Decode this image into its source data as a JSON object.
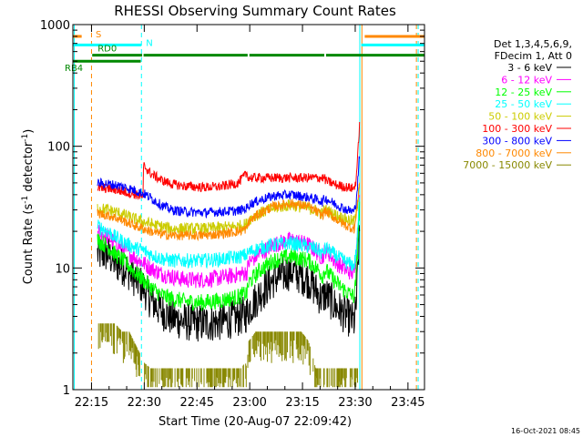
{
  "chart_data": {
    "type": "line",
    "title": "RHESSI Observing Summary Count Rates",
    "xlabel": "Start Time (20-Aug-07 22:09:42)",
    "ylabel": "Count Rate (s",
    "ylabel_sup1": "-1",
    "ylabel_mid": " detector",
    "ylabel_sup2": "-1",
    "ylabel_end": ")",
    "yscale": "log",
    "xlim": [
      0,
      100
    ],
    "ylim": [
      1,
      1000
    ],
    "x_units": "minutes after 22:09:42",
    "xticks": [
      {
        "x": 5.3,
        "label": "22:15"
      },
      {
        "x": 20.3,
        "label": "22:30"
      },
      {
        "x": 35.3,
        "label": "22:45"
      },
      {
        "x": 50.3,
        "label": "23:00"
      },
      {
        "x": 65.3,
        "label": "23:15"
      },
      {
        "x": 80.3,
        "label": "23:30"
      },
      {
        "x": 95.3,
        "label": "23:45"
      }
    ],
    "yticks": [
      {
        "y": 1,
        "label": "1"
      },
      {
        "y": 10,
        "label": "10"
      },
      {
        "y": 100,
        "label": "100"
      },
      {
        "y": 1000,
        "label": "1000"
      }
    ],
    "legend": {
      "placement": "right",
      "header": [
        "Det 1,3,4,5,6,9,",
        "FDecim 1, Att 0"
      ],
      "entries": [
        {
          "label": "3 - 6 keV",
          "color": "#000000"
        },
        {
          "label": "6 - 12 keV",
          "color": "#ff00ff"
        },
        {
          "label": "12 - 25 keV",
          "color": "#00ff00"
        },
        {
          "label": "25 - 50 keV",
          "color": "#00ffff"
        },
        {
          "label": "50 - 100 keV",
          "color": "#cccc00"
        },
        {
          "label": "100 - 300 keV",
          "color": "#ff0000"
        },
        {
          "label": "300 - 800 keV",
          "color": "#0000ff"
        },
        {
          "label": "800 - 7000 keV",
          "color": "#ff8800"
        },
        {
          "label": "7000 - 15000 keV",
          "color": "#888800"
        }
      ]
    },
    "flag_bars": [
      {
        "label": "S",
        "color": "#ff8800",
        "y": 800,
        "segments": [
          [
            0,
            2.5
          ],
          [
            83,
            100
          ]
        ]
      },
      {
        "label": "N",
        "color": "#00ffff",
        "y": 680,
        "segments": [
          [
            0,
            19.5
          ],
          [
            82,
            100
          ]
        ]
      },
      {
        "label": "RD0",
        "color": "#008800",
        "y": 560,
        "segments": [
          [
            5.5,
            19.7
          ],
          [
            20.1,
            49.7
          ],
          [
            50.2,
            71.5
          ],
          [
            72,
            100
          ]
        ]
      },
      {
        "label": "RB4",
        "color": "#008800",
        "y": 500,
        "segments": [
          [
            0,
            19.3
          ]
        ]
      }
    ],
    "vertical_markers": [
      {
        "x": 0.4,
        "color": "#00ffff",
        "style": "solid"
      },
      {
        "x": 5.3,
        "color": "#ff8800",
        "style": "dashed"
      },
      {
        "x": 19.5,
        "color": "#00ffff",
        "style": "dashed"
      },
      {
        "x": 81.6,
        "color": "#00ffff",
        "style": "solid"
      },
      {
        "x": 82.2,
        "color": "#ff8800",
        "style": "solid"
      },
      {
        "x": 97.7,
        "color": "#ff8800",
        "style": "dashed"
      },
      {
        "x": 98.2,
        "color": "#00ffff",
        "style": "dashed"
      }
    ],
    "series": [
      {
        "band": "3 - 6 keV",
        "color": "#000000",
        "noise": 0.16,
        "x": [
          7,
          10,
          12,
          15,
          18,
          20,
          22,
          25,
          28,
          32,
          37,
          42,
          47,
          49.5,
          50,
          53,
          57,
          62,
          67,
          70,
          71,
          71.5,
          72,
          75,
          78,
          80,
          80.5,
          81,
          81.3,
          81.6
        ],
        "y": [
          13,
          13,
          11,
          10,
          8,
          7,
          5.5,
          4.5,
          3.9,
          3.6,
          3.5,
          3.6,
          3.9,
          4.2,
          4.6,
          6,
          8,
          9.5,
          8,
          6,
          5.5,
          6,
          6,
          4.7,
          4,
          3.6,
          4.5,
          9,
          14,
          20
        ]
      },
      {
        "band": "6 - 12 keV",
        "color": "#ff00ff",
        "noise": 0.07,
        "x": [
          7,
          10,
          12,
          15,
          18,
          20,
          22,
          25,
          28,
          32,
          37,
          42,
          47,
          49.5,
          50,
          53,
          57,
          62,
          67,
          70,
          71,
          71.5,
          72,
          75,
          78,
          80,
          80.5,
          81,
          81.3,
          81.6
        ],
        "y": [
          20,
          18,
          16,
          14,
          12,
          11,
          10,
          9,
          8.5,
          8,
          8,
          8.3,
          8.8,
          9.2,
          11,
          13,
          15.5,
          17,
          15.5,
          13,
          12,
          13.5,
          14,
          11,
          9.5,
          9,
          12,
          20,
          30,
          40
        ]
      },
      {
        "band": "12 - 25 keV",
        "color": "#00ff00",
        "noise": 0.07,
        "x": [
          7,
          10,
          12,
          15,
          18,
          20,
          22,
          25,
          28,
          32,
          37,
          42,
          47,
          49.5,
          50,
          53,
          57,
          62,
          67,
          70,
          71,
          71.5,
          72,
          75,
          78,
          80,
          80.5,
          81,
          81.3,
          81.6
        ],
        "y": [
          17,
          15,
          13,
          11,
          9,
          8,
          7,
          6,
          5.6,
          5.3,
          5.2,
          5.4,
          5.8,
          6.2,
          7.5,
          9.5,
          11.5,
          12.5,
          11.5,
          9.5,
          8.5,
          9.5,
          9.5,
          7.5,
          6.3,
          5.8,
          8,
          15,
          25,
          35
        ]
      },
      {
        "band": "25 - 50 keV",
        "color": "#00ffff",
        "noise": 0.06,
        "x": [
          7,
          10,
          12,
          15,
          18,
          20,
          22,
          25,
          28,
          32,
          37,
          42,
          47,
          49.5,
          50,
          53,
          57,
          62,
          67,
          70,
          71,
          71.5,
          72,
          75,
          78,
          80,
          80.5,
          81,
          81.3,
          81.6
        ],
        "y": [
          22,
          20,
          18,
          16,
          14.5,
          14,
          13,
          12,
          11.5,
          11.5,
          11.5,
          11.8,
          12.3,
          12.8,
          13.5,
          14.5,
          15.5,
          16,
          15,
          14,
          13,
          14,
          14.5,
          12.5,
          11,
          10.5,
          13,
          20,
          30,
          40
        ]
      },
      {
        "band": "50 - 100 keV",
        "color": "#cccc00",
        "noise": 0.05,
        "x": [
          7,
          10,
          12,
          15,
          18,
          20,
          22,
          25,
          28,
          32,
          37,
          42,
          47,
          49.5,
          50,
          53,
          57,
          62,
          67,
          70,
          71,
          71.5,
          72,
          75,
          78,
          80,
          80.5,
          81,
          81.3,
          81.6
        ],
        "y": [
          31,
          30,
          29,
          27,
          25,
          24,
          23,
          22,
          21,
          21,
          21,
          21.5,
          22,
          23,
          25,
          28,
          31,
          33,
          31,
          29,
          28,
          30,
          30,
          27,
          25,
          24,
          27,
          35,
          45,
          55
        ]
      },
      {
        "band": "100 - 300 keV",
        "color": "#ff0000",
        "noise": 0.04,
        "x": [
          7,
          10,
          12,
          15,
          18,
          20,
          20.1,
          22,
          25,
          28,
          32,
          37,
          42,
          47,
          49.5,
          50,
          53,
          57,
          62,
          67,
          70,
          71,
          71.5,
          72,
          75,
          78,
          80,
          80.5,
          81,
          81.3,
          81.6
        ],
        "y": [
          45,
          45,
          44,
          42,
          40,
          38,
          70,
          60,
          53,
          49,
          47,
          46,
          46.5,
          50,
          60,
          55,
          55,
          55,
          55,
          55,
          55,
          55,
          55,
          52,
          48,
          46,
          45,
          52,
          80,
          120,
          160
        ]
      },
      {
        "band": "300 - 800 keV",
        "color": "#0000ff",
        "noise": 0.04,
        "x": [
          7,
          10,
          12,
          15,
          18,
          20,
          22,
          25,
          28,
          32,
          37,
          42,
          47,
          49.5,
          50,
          53,
          57,
          62,
          67,
          70,
          71,
          71.5,
          72,
          75,
          78,
          80,
          80.5,
          81,
          81.3,
          81.6
        ],
        "y": [
          50,
          49,
          48,
          46,
          43,
          41,
          38,
          33,
          30,
          29,
          28.5,
          29,
          29.5,
          31,
          33,
          36,
          39,
          40,
          38,
          36,
          35,
          37,
          37,
          33,
          30,
          29,
          34,
          50,
          70,
          90
        ]
      },
      {
        "band": "800 - 7000 keV",
        "color": "#ff8800",
        "noise": 0.04,
        "x": [
          7,
          10,
          12,
          15,
          18,
          20,
          22,
          25,
          28,
          32,
          37,
          42,
          47,
          49.5,
          50,
          53,
          57,
          62,
          67,
          70,
          71,
          71.5,
          72,
          75,
          78,
          80,
          80.5,
          81,
          81.3,
          81.6
        ],
        "y": [
          28,
          27,
          26,
          24,
          22,
          21,
          20,
          19,
          18.5,
          18.5,
          18.5,
          19,
          20,
          21,
          24,
          28,
          32,
          34,
          32,
          28,
          27,
          29,
          29,
          25,
          22,
          21,
          25,
          35,
          45,
          55
        ]
      },
      {
        "band": "7000 - 15000 keV",
        "color": "#888800",
        "noise": 0,
        "x": [
          7,
          12,
          14,
          16,
          19,
          20,
          22,
          25,
          28,
          32,
          37,
          42,
          45,
          46,
          48,
          49,
          49.5,
          50,
          52,
          55,
          57,
          60,
          62,
          65,
          67,
          68,
          69,
          70,
          72,
          75,
          78,
          80,
          81
        ],
        "y": [
          3.5,
          3.5,
          3,
          3,
          2,
          1.7,
          1.5,
          1.5,
          1.5,
          1.5,
          1.5,
          1.5,
          1.5,
          1.5,
          1.5,
          1.7,
          1.5,
          2.5,
          3,
          3,
          3,
          3,
          3,
          3,
          2.5,
          2,
          1.5,
          1.5,
          1.5,
          1.5,
          1.5,
          1.5,
          1.5
        ]
      }
    ],
    "footer_date": "16-Oct-2021 08:45"
  }
}
